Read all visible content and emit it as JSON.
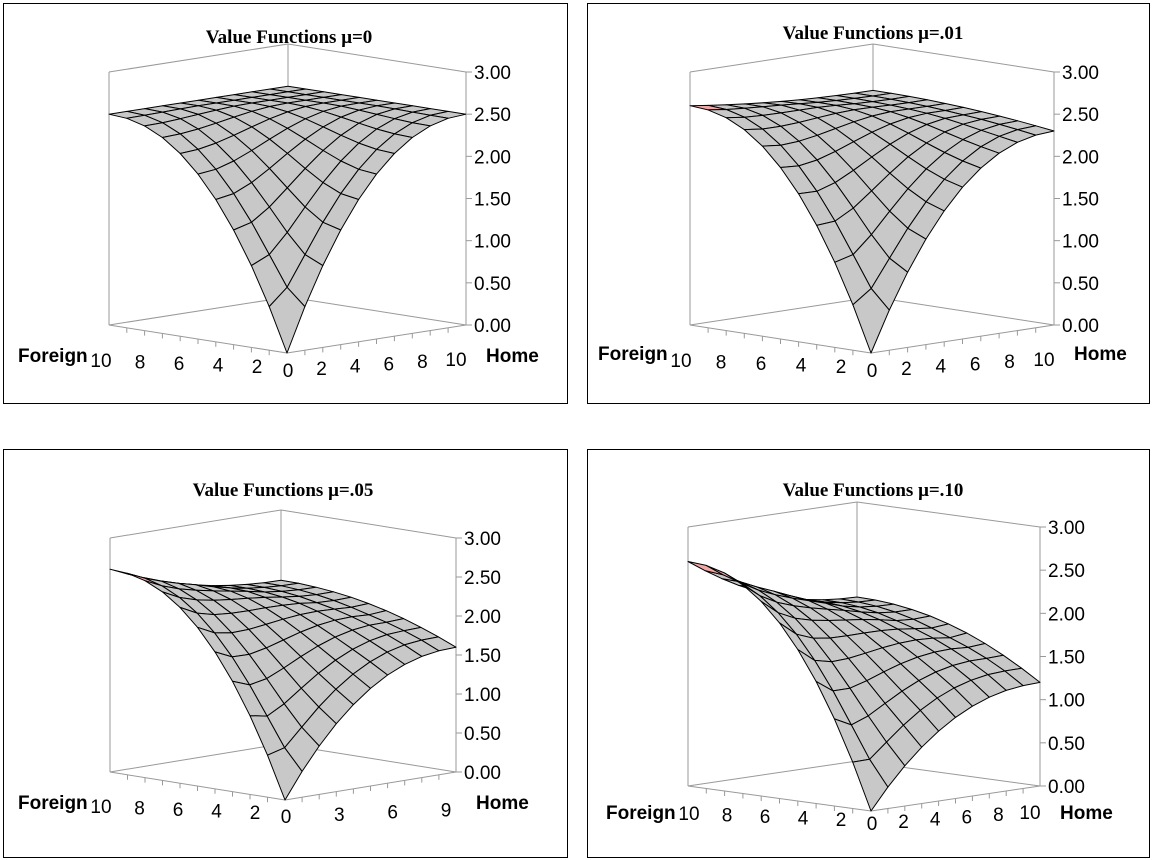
{
  "chart_data": [
    {
      "type": "surface",
      "title": "Value Functions μ=0",
      "zlim": [
        0,
        3
      ],
      "z_ticks": [
        "0.00",
        "0.50",
        "1.00",
        "1.50",
        "2.00",
        "2.50",
        "3.00"
      ],
      "foreign_label": "Foreign",
      "home_label": "Home",
      "foreign_ticks": [
        "10",
        "8",
        "6",
        "4",
        "2"
      ],
      "home_ticks": [
        "0",
        "2",
        "4",
        "6",
        "8",
        "10"
      ],
      "grid_n": 10,
      "z_corner": 0,
      "z_max": 2.5,
      "z_far": 2.5,
      "z_home_edge": 2.5,
      "z_foreign_edge": 2.5,
      "highlight_cells": 0
    },
    {
      "type": "surface",
      "title": "Value Functions μ=.01",
      "zlim": [
        0,
        3
      ],
      "z_ticks": [
        "0.00",
        "0.50",
        "1.00",
        "1.50",
        "2.00",
        "2.50",
        "3.00"
      ],
      "foreign_label": "Foreign",
      "home_label": "Home",
      "foreign_ticks": [
        "10",
        "8",
        "6",
        "4",
        "2"
      ],
      "home_ticks": [
        "0",
        "2",
        "4",
        "6",
        "8",
        "10"
      ],
      "grid_n": 10,
      "z_corner": 0,
      "z_max": 2.6,
      "z_far": 2.45,
      "z_home_edge": 2.3,
      "z_foreign_edge": 2.6,
      "highlight_cells": 1
    },
    {
      "type": "surface",
      "title": "Value Functions μ=.05",
      "zlim": [
        0,
        3
      ],
      "z_ticks": [
        "0.00",
        "0.50",
        "1.00",
        "1.50",
        "2.00",
        "2.50",
        "3.00"
      ],
      "foreign_label": "Foreign",
      "home_label": "Home",
      "foreign_ticks": [
        "10",
        "8",
        "6",
        "4",
        "2"
      ],
      "home_ticks": [
        "0",
        "3",
        "6",
        "9"
      ],
      "grid_n": 10,
      "z_corner": 0,
      "z_max": 2.6,
      "z_far": 2.1,
      "z_home_edge": 1.6,
      "z_foreign_edge": 2.6,
      "highlight_cells": 2
    },
    {
      "type": "surface",
      "title": "Value Functions μ=.10",
      "zlim": [
        0,
        3
      ],
      "z_ticks": [
        "0.00",
        "0.50",
        "1.00",
        "1.50",
        "2.00",
        "2.50",
        "3.00"
      ],
      "foreign_label": "Foreign",
      "home_label": "Home",
      "foreign_ticks": [
        "10",
        "8",
        "6",
        "4",
        "2"
      ],
      "home_ticks": [
        "0",
        "2",
        "4",
        "6",
        "8",
        "10"
      ],
      "grid_n": 10,
      "z_corner": 0,
      "z_max": 2.6,
      "z_far": 1.9,
      "z_home_edge": 1.2,
      "z_foreign_edge": 2.6,
      "highlight_cells": 2
    }
  ]
}
